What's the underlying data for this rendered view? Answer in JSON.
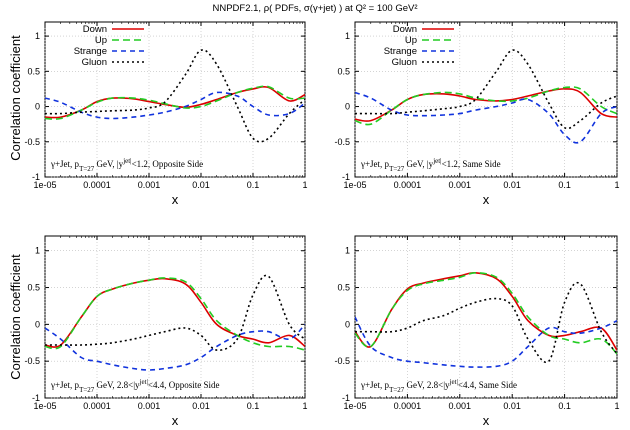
{
  "title": "NNPDF2.1, ρ( PDFs, σ(γ+jet) ) at Q² = 100 GeV²",
  "ylabel": "Correlation coefficient",
  "colors": {
    "Down": "#dd0000",
    "Up": "#22cc22",
    "Strange": "#1133dd",
    "Gluon": "#000000"
  },
  "chart_data": [
    {
      "type": "line",
      "annotation": "γ+Jet, p_T=27 GeV, |y^jet|<1.2, Opposite Side",
      "xlabel": "x",
      "ylabel": "Correlation coefficient",
      "xscale": "log",
      "xlim": [
        1e-05,
        1
      ],
      "ylim": [
        -1,
        1.2
      ],
      "xticks": [
        "1e-05",
        "0.0001",
        "0.001",
        "0.01",
        "0.1",
        "1"
      ],
      "yticks": [
        "-1",
        "-0.5",
        "0",
        "0.5",
        "1"
      ],
      "legend": "top-left",
      "x": [
        1e-05,
        2e-05,
        5e-05,
        0.0001,
        0.0002,
        0.0005,
        0.001,
        0.002,
        0.005,
        0.01,
        0.02,
        0.05,
        0.1,
        0.2,
        0.5,
        1
      ],
      "series": [
        {
          "name": "Down",
          "values": [
            -0.15,
            -0.15,
            -0.05,
            0.07,
            0.12,
            0.11,
            0.07,
            0.03,
            -0.01,
            0.03,
            0.1,
            0.2,
            0.25,
            0.27,
            0.08,
            0.17
          ]
        },
        {
          "name": "Up",
          "values": [
            -0.17,
            -0.17,
            -0.05,
            0.06,
            0.12,
            0.12,
            0.09,
            0.04,
            -0.02,
            0.0,
            0.08,
            0.2,
            0.26,
            0.28,
            0.12,
            0.12
          ]
        },
        {
          "name": "Strange",
          "values": [
            0.12,
            0.06,
            -0.08,
            -0.15,
            -0.17,
            -0.15,
            -0.12,
            -0.08,
            0.0,
            0.1,
            0.2,
            0.15,
            0.0,
            -0.12,
            -0.1,
            0.05
          ]
        },
        {
          "name": "Gluon",
          "values": [
            -0.1,
            -0.1,
            -0.08,
            -0.07,
            -0.06,
            -0.05,
            -0.02,
            0.06,
            0.45,
            0.8,
            0.6,
            0.0,
            -0.45,
            -0.45,
            -0.1,
            0.1
          ]
        }
      ]
    },
    {
      "type": "line",
      "annotation": "γ+Jet, p_T=27 GeV, |y^jet|<1.2, Same Side",
      "xlabel": "x",
      "ylabel": "",
      "xscale": "log",
      "xlim": [
        1e-05,
        1
      ],
      "ylim": [
        -1,
        1.2
      ],
      "xticks": [
        "1e-05",
        "0.0001",
        "0.001",
        "0.01",
        "0.1",
        "1"
      ],
      "yticks": [
        "-1",
        "-0.5",
        "0",
        "0.5",
        "1"
      ],
      "legend": "top-left",
      "x": [
        1e-05,
        2e-05,
        5e-05,
        0.0001,
        0.0002,
        0.0005,
        0.001,
        0.002,
        0.005,
        0.01,
        0.02,
        0.05,
        0.1,
        0.2,
        0.5,
        1
      ],
      "series": [
        {
          "name": "Down",
          "values": [
            -0.18,
            -0.2,
            -0.05,
            0.1,
            0.17,
            0.18,
            0.15,
            0.1,
            0.08,
            0.1,
            0.15,
            0.22,
            0.25,
            0.2,
            -0.1,
            -0.15
          ]
        },
        {
          "name": "Up",
          "values": [
            -0.2,
            -0.25,
            -0.05,
            0.1,
            0.17,
            0.2,
            0.18,
            0.12,
            0.08,
            0.08,
            0.12,
            0.22,
            0.27,
            0.25,
            0.0,
            -0.1
          ]
        },
        {
          "name": "Strange",
          "values": [
            0.2,
            0.12,
            -0.05,
            -0.12,
            -0.13,
            -0.12,
            -0.1,
            -0.05,
            0.0,
            0.05,
            0.1,
            -0.1,
            -0.4,
            -0.5,
            -0.1,
            0.0
          ]
        },
        {
          "name": "Gluon",
          "values": [
            -0.1,
            -0.1,
            -0.1,
            -0.08,
            -0.06,
            -0.03,
            0.0,
            0.1,
            0.5,
            0.8,
            0.6,
            0.05,
            -0.3,
            -0.2,
            0.05,
            0.15
          ]
        }
      ]
    },
    {
      "type": "line",
      "annotation": "γ+Jet, p_T=27 GeV, 2.8<|y^jet|<4.4, Opposite Side",
      "xlabel": "x",
      "ylabel": "Correlation coefficient",
      "xscale": "log",
      "xlim": [
        1e-05,
        1
      ],
      "ylim": [
        -1,
        1.2
      ],
      "xticks": [
        "1e-05",
        "0.0001",
        "0.001",
        "0.01",
        "0.1",
        "1"
      ],
      "yticks": [
        "-1",
        "-0.5",
        "0",
        "0.5",
        "1"
      ],
      "x": [
        1e-05,
        2e-05,
        5e-05,
        0.0001,
        0.0002,
        0.0005,
        0.001,
        0.002,
        0.005,
        0.01,
        0.02,
        0.05,
        0.1,
        0.2,
        0.5,
        1
      ],
      "series": [
        {
          "name": "Down",
          "values": [
            -0.28,
            -0.28,
            0.1,
            0.38,
            0.48,
            0.56,
            0.6,
            0.62,
            0.55,
            0.3,
            0.0,
            -0.15,
            -0.2,
            -0.25,
            -0.15,
            -0.3
          ]
        },
        {
          "name": "Up",
          "values": [
            -0.3,
            -0.3,
            0.1,
            0.38,
            0.48,
            0.56,
            0.6,
            0.63,
            0.58,
            0.35,
            0.05,
            -0.15,
            -0.25,
            -0.3,
            -0.3,
            -0.35
          ]
        },
        {
          "name": "Strange",
          "values": [
            -0.05,
            -0.2,
            -0.45,
            -0.5,
            -0.55,
            -0.6,
            -0.62,
            -0.6,
            -0.55,
            -0.45,
            -0.3,
            -0.15,
            -0.1,
            -0.1,
            -0.2,
            0.0
          ]
        },
        {
          "name": "Gluon",
          "values": [
            -0.28,
            -0.28,
            -0.28,
            -0.27,
            -0.25,
            -0.2,
            -0.15,
            -0.1,
            -0.05,
            -0.15,
            -0.35,
            -0.2,
            0.4,
            0.65,
            0.0,
            -0.2
          ]
        }
      ]
    },
    {
      "type": "line",
      "annotation": "γ+Jet, p_T=27 GeV, 2.8<|y^jet|<4.4, Same Side",
      "xlabel": "x",
      "ylabel": "",
      "xscale": "log",
      "xlim": [
        1e-05,
        1
      ],
      "ylim": [
        -1,
        1.2
      ],
      "xticks": [
        "1e-05",
        "0.0001",
        "0.001",
        "0.01",
        "0.1",
        "1"
      ],
      "yticks": [
        "-1",
        "-0.5",
        "0",
        "0.5",
        "1"
      ],
      "x": [
        1e-05,
        2e-05,
        5e-05,
        0.0001,
        0.0002,
        0.0005,
        0.001,
        0.002,
        0.005,
        0.01,
        0.02,
        0.05,
        0.1,
        0.2,
        0.5,
        1
      ],
      "series": [
        {
          "name": "Down",
          "values": [
            -0.1,
            -0.3,
            0.2,
            0.48,
            0.56,
            0.62,
            0.66,
            0.7,
            0.62,
            0.38,
            0.05,
            -0.15,
            -0.15,
            -0.1,
            -0.05,
            -0.35
          ]
        },
        {
          "name": "Up",
          "values": [
            -0.12,
            -0.3,
            0.2,
            0.46,
            0.55,
            0.6,
            0.64,
            0.7,
            0.64,
            0.42,
            0.1,
            -0.15,
            -0.2,
            -0.25,
            -0.2,
            -0.4
          ]
        },
        {
          "name": "Strange",
          "values": [
            0.1,
            -0.3,
            -0.45,
            -0.5,
            -0.52,
            -0.55,
            -0.57,
            -0.58,
            -0.57,
            -0.5,
            -0.3,
            -0.05,
            -0.1,
            -0.12,
            -0.05,
            0.05
          ]
        },
        {
          "name": "Gluon",
          "values": [
            -0.1,
            -0.1,
            -0.1,
            -0.05,
            0.05,
            0.12,
            0.22,
            0.3,
            0.35,
            0.25,
            -0.2,
            -0.5,
            0.3,
            0.55,
            -0.1,
            -0.4
          ]
        }
      ]
    }
  ]
}
